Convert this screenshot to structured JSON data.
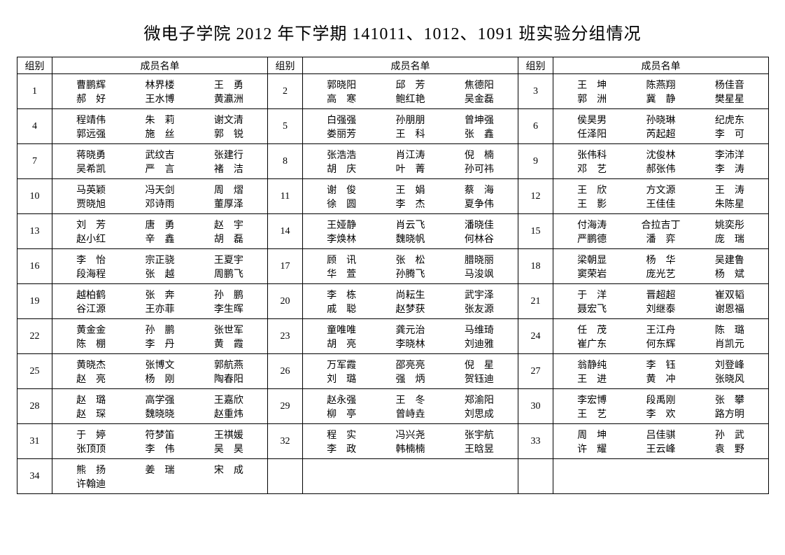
{
  "title": "微电子学院 2012 年下学期 141011、1012、1091 班实验分组情况",
  "header_group": "组别",
  "header_members": "成员名单",
  "groups": [
    {
      "n": "1",
      "m": [
        "曹鹏辉",
        "林界楼",
        "王　勇",
        "郝　好",
        "王水博",
        "黄瀛洲"
      ]
    },
    {
      "n": "2",
      "m": [
        "郭晓阳",
        "邱　芳",
        "焦德阳",
        "高　寒",
        "鲍红艳",
        "吴金磊"
      ]
    },
    {
      "n": "3",
      "m": [
        "王　坤",
        "陈燕翔",
        "杨佳音",
        "郭　洲",
        "冀　静",
        "樊星星"
      ]
    },
    {
      "n": "4",
      "m": [
        "程靖伟",
        "朱　莉",
        "谢文清",
        "郭远强",
        "施　丝",
        "郭　锐"
      ]
    },
    {
      "n": "5",
      "m": [
        "白强强",
        "孙朋朋",
        "曾坤强",
        "娄丽芳",
        "王　科",
        "张　鑫"
      ]
    },
    {
      "n": "6",
      "m": [
        "侯昊男",
        "孙晓琳",
        "纪虎东",
        "任泽阳",
        "芮起超",
        "李　可"
      ]
    },
    {
      "n": "7",
      "m": [
        "蒋晓勇",
        "武纹吉",
        "张建行",
        "吴希凯",
        "严　言",
        "褚　洁"
      ]
    },
    {
      "n": "8",
      "m": [
        "张浩浩",
        "肖江涛",
        "倪　楠",
        "胡　庆",
        "叶　菁",
        "孙可祎"
      ]
    },
    {
      "n": "9",
      "m": [
        "张伟科",
        "沈俊林",
        "李沛洋",
        "邓　艺",
        "郝张伟",
        "李　涛"
      ]
    },
    {
      "n": "10",
      "m": [
        "马英颖",
        "冯天剑",
        "周　熠",
        "贾晓旭",
        "邓诗雨",
        "董厚泽"
      ]
    },
    {
      "n": "11",
      "m": [
        "谢　俊",
        "王　娟",
        "蔡　海",
        "徐　圆",
        "李　杰",
        "夏争伟"
      ]
    },
    {
      "n": "12",
      "m": [
        "王　欣",
        "方文源",
        "王　涛",
        "王　影",
        "王佳佳",
        "朱陈星"
      ]
    },
    {
      "n": "13",
      "m": [
        "刘　芳",
        "唐　勇",
        "赵　宇",
        "赵小红",
        "辛　鑫",
        "胡　磊"
      ]
    },
    {
      "n": "14",
      "m": [
        "王娅静",
        "肖云飞",
        "潘晓佳",
        "李焕林",
        "魏晓帆",
        "何林谷"
      ]
    },
    {
      "n": "15",
      "m": [
        "付海涛",
        "合拉吉丁",
        "姚奕彤",
        "严鹏德",
        "潘　弈",
        "庞　瑞"
      ]
    },
    {
      "n": "16",
      "m": [
        "李　怡",
        "宗正骁",
        "王夏宇",
        "段海程",
        "张　越",
        "周鹏飞"
      ]
    },
    {
      "n": "17",
      "m": [
        "顾　讯",
        "张　松",
        "腊晓丽",
        "华　萱",
        "孙腾飞",
        "马浚飒"
      ]
    },
    {
      "n": "18",
      "m": [
        "梁朝显",
        "杨　华",
        "吴建鲁",
        "窦荣岩",
        "庞光艺",
        "杨　斌"
      ]
    },
    {
      "n": "19",
      "m": [
        "越柏鹤",
        "张　奔",
        "孙　鹏",
        "谷江源",
        "王亦菲",
        "李生晖"
      ]
    },
    {
      "n": "20",
      "m": [
        "李　栋",
        "尚耘生",
        "武宇泽",
        "戚　聪",
        "赵梦获",
        "张友源"
      ]
    },
    {
      "n": "21",
      "m": [
        "于　洋",
        "晋超超",
        "崔双韬",
        "聂宏飞",
        "刘继泰",
        "谢恩福"
      ]
    },
    {
      "n": "22",
      "m": [
        "黄金金",
        "孙　鹏",
        "张世军",
        "陈　棚",
        "李　丹",
        "黄　霞"
      ]
    },
    {
      "n": "23",
      "m": [
        "童唯唯",
        "龚元治",
        "马维琦",
        "胡　亮",
        "李晓林",
        "刘迪雅"
      ]
    },
    {
      "n": "24",
      "m": [
        "任　茂",
        "王江舟",
        "陈　璐",
        "崔广东",
        "何东辉",
        "肖凯元"
      ]
    },
    {
      "n": "25",
      "m": [
        "黄晓杰",
        "张博文",
        "郭航燕",
        "赵　亮",
        "杨　刚",
        "陶春阳"
      ]
    },
    {
      "n": "26",
      "m": [
        "万军霞",
        "邵亮亮",
        "倪　星",
        "刘　璐",
        "强　炳",
        "贺钰迪"
      ]
    },
    {
      "n": "27",
      "m": [
        "翁静纯",
        "李　钰",
        "刘登峰",
        "王　进",
        "黄　冲",
        "张晓风"
      ]
    },
    {
      "n": "28",
      "m": [
        "赵　璐",
        "高学强",
        "王嘉欣",
        "赵　琛",
        "魏晓晓",
        "赵重炜"
      ]
    },
    {
      "n": "29",
      "m": [
        "赵永强",
        "王　冬",
        "郑渝阳",
        "柳　亭",
        "曾峙垚",
        "刘思成"
      ]
    },
    {
      "n": "30",
      "m": [
        "李宏博",
        "段禹刚",
        "张　攀",
        "王　艺",
        "李　欢",
        "路方明"
      ]
    },
    {
      "n": "31",
      "m": [
        "于　婷",
        "符梦笛",
        "王祺媛",
        "张顶顶",
        "李　伟",
        "吴　昊"
      ]
    },
    {
      "n": "32",
      "m": [
        "程　实",
        "冯兴尧",
        "张宇航",
        "李　政",
        "韩楠楠",
        "王晗昱"
      ]
    },
    {
      "n": "33",
      "m": [
        "周　坤",
        "吕佳骐",
        "孙　武",
        "许　耀",
        "王云峰",
        "袁　野"
      ]
    },
    {
      "n": "34",
      "m": [
        "熊　扬",
        "姜　瑞",
        "宋　成",
        "许翰迪",
        "",
        ""
      ]
    }
  ]
}
